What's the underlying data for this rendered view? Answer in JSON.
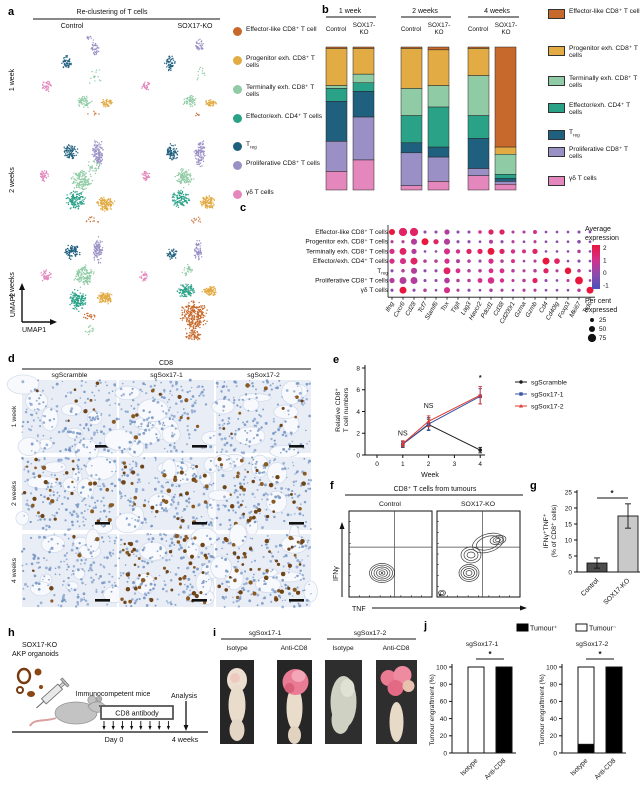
{
  "panel_letters": {
    "a": "a",
    "b": "b",
    "c": "c",
    "d": "d",
    "e": "e",
    "f": "f",
    "g": "g",
    "h": "h",
    "i": "i",
    "j": "j"
  },
  "cell_types": [
    {
      "name": "Effector-like CD8⁺ T cell",
      "color": "#c7692c"
    },
    {
      "name": "Progenitor exh. CD8⁺ T cells",
      "color": "#e2ab44"
    },
    {
      "name": "Terminally exh. CD8⁺ T cells",
      "color": "#8fcba4"
    },
    {
      "name": "Effector/exh. CD4⁺ T cells",
      "color": "#2aa287"
    },
    {
      "name": "T_{reg}",
      "color": "#20607f"
    },
    {
      "name": "Proliferative CD8⁺ T cells",
      "color": "#9b90c6"
    },
    {
      "name": "γδ T cells",
      "color": "#e387bd"
    }
  ],
  "panel_a": {
    "title": "Re-clustering of T cells",
    "cols": [
      "Control",
      "SOX17-KO"
    ],
    "rows": [
      "1 week",
      "2 weeks",
      "4 weeks"
    ],
    "x_axis": "UMAP1",
    "y_axis": "UMAP2"
  },
  "panel_b": {
    "group_titles": [
      "1 week",
      "2 weeks",
      "4 weeks"
    ],
    "col_labels": [
      "Control",
      "SOX17-",
      "KO"
    ]
  },
  "panel_d": {
    "title": "CD8",
    "cols": [
      "sgScramble",
      "sgSox17-1",
      "sgSox17-2"
    ],
    "rows": [
      "1 week",
      "2 weeks",
      "4 weeks"
    ],
    "brown_counts": [
      [
        9,
        11,
        10
      ],
      [
        30,
        32,
        34
      ],
      [
        6,
        50,
        44
      ]
    ]
  },
  "panel_f": {
    "title": "CD8⁺ T cells from tumours",
    "cols": [
      "Control",
      "SOX17-KO"
    ],
    "x_axis": "TNF",
    "y_axis": "IFNγ"
  },
  "panel_h": {
    "line1": "SOX17-KO",
    "line2": "AKP organoids",
    "mice": "Immunocompetent mice",
    "box": "CD8 antibody",
    "analysis": "Analysis",
    "day0": "Day 0",
    "end": "4 weeks"
  },
  "panel_i": {
    "groups": [
      "sgSox17-1",
      "sgSox17-2"
    ],
    "cols": [
      "Isotype",
      "Anti-CD8"
    ]
  },
  "chart_data": [
    {
      "id": "umap",
      "type": "scatter",
      "title": "Re-clustering of T cells",
      "note": "clusters as [colorIndex,cx,cy,rx,ry,n] in page coords",
      "clusters": [
        [
          5,
          95,
          48,
          5,
          9,
          40
        ],
        [
          4,
          67,
          63,
          6,
          8,
          55
        ],
        [
          6,
          47,
          86,
          6,
          6,
          40
        ],
        [
          2,
          84,
          102,
          8,
          7,
          60
        ],
        [
          1,
          107,
          103,
          7,
          5,
          50
        ],
        [
          2,
          96,
          76,
          10,
          12,
          14
        ],
        [
          0,
          92,
          114,
          8,
          3,
          6
        ],
        [
          5,
          88,
          38,
          4,
          3,
          8
        ],
        [
          5,
          199,
          46,
          5,
          9,
          38
        ],
        [
          4,
          170,
          63,
          6,
          8,
          55
        ],
        [
          6,
          146,
          86,
          5,
          6,
          35
        ],
        [
          2,
          190,
          101,
          8,
          7,
          55
        ],
        [
          1,
          210,
          103,
          7,
          5,
          45
        ],
        [
          2,
          200,
          76,
          10,
          12,
          12
        ],
        [
          0,
          196,
          114,
          8,
          3,
          6
        ],
        [
          4,
          70,
          152,
          9,
          9,
          90
        ],
        [
          5,
          98,
          153,
          6,
          16,
          120
        ],
        [
          6,
          44,
          176,
          6,
          7,
          45
        ],
        [
          2,
          82,
          180,
          12,
          12,
          150
        ],
        [
          3,
          76,
          200,
          11,
          11,
          140
        ],
        [
          1,
          106,
          204,
          10,
          8,
          130
        ],
        [
          0,
          92,
          220,
          9,
          4,
          12
        ],
        [
          2,
          95,
          166,
          8,
          8,
          30
        ],
        [
          4,
          172,
          152,
          8,
          9,
          80
        ],
        [
          5,
          200,
          153,
          6,
          16,
          110
        ],
        [
          6,
          146,
          176,
          5,
          6,
          38
        ],
        [
          2,
          184,
          178,
          10,
          10,
          110
        ],
        [
          3,
          180,
          199,
          10,
          10,
          120
        ],
        [
          1,
          208,
          203,
          9,
          8,
          110
        ],
        [
          0,
          196,
          220,
          8,
          4,
          10
        ],
        [
          4,
          72,
          252,
          10,
          9,
          90
        ],
        [
          5,
          98,
          250,
          6,
          15,
          100
        ],
        [
          6,
          46,
          276,
          6,
          7,
          45
        ],
        [
          2,
          84,
          276,
          11,
          12,
          150
        ],
        [
          3,
          78,
          300,
          10,
          12,
          150
        ],
        [
          1,
          105,
          298,
          9,
          7,
          120
        ],
        [
          0,
          88,
          316,
          8,
          5,
          20
        ],
        [
          2,
          90,
          330,
          6,
          5,
          15
        ],
        [
          5,
          198,
          250,
          5,
          12,
          60
        ],
        [
          4,
          172,
          254,
          6,
          7,
          50
        ],
        [
          6,
          144,
          276,
          5,
          6,
          35
        ],
        [
          2,
          187,
          270,
          6,
          6,
          30
        ],
        [
          3,
          186,
          290,
          10,
          9,
          110
        ],
        [
          1,
          210,
          291,
          8,
          6,
          90
        ],
        [
          0,
          194,
          316,
          15,
          17,
          280
        ],
        [
          0,
          194,
          335,
          10,
          6,
          60
        ]
      ]
    },
    {
      "id": "b_stacked",
      "type": "bar",
      "stacked": true,
      "categories": [
        "1 week Control",
        "1 week SOX17-KO",
        "2 weeks Control",
        "2 weeks SOX17-KO",
        "4 weeks Control",
        "4 weeks SOX17-KO"
      ],
      "series_order": "top to bottom: Effector-like, Progenitor, Terminally, Effector/exh CD4, Treg, Proliferative, gd",
      "values_pct": [
        [
          1,
          26,
          2,
          9,
          28,
          21,
          13
        ],
        [
          1,
          18,
          6,
          6,
          18,
          30,
          21
        ],
        [
          1,
          28,
          19,
          19,
          7,
          23,
          3
        ],
        [
          2,
          25,
          15,
          28,
          7,
          17,
          6
        ],
        [
          1,
          19,
          28,
          16,
          21,
          5,
          10
        ],
        [
          70,
          5,
          14,
          3,
          2,
          2,
          4
        ]
      ]
    },
    {
      "id": "c_dotplot",
      "type": "heatmap",
      "genes": [
        "Ifng",
        "Cxcr6",
        "Cd28",
        "Tcf7",
        "Slamf6",
        "Tox",
        "Tigit",
        "Lag3",
        "Havcr2",
        "Pdcd1",
        "Cd38",
        "Cd200r1",
        "Gzma",
        "Gzmb",
        "Cd4",
        "Cd40lg",
        "Foxp3",
        "Mki67",
        "Trdc"
      ],
      "rows": [
        "Effector-like CD8⁺ T cells",
        "Progenitor exh. CD8⁺ T cells",
        "Terminally exh. CD8⁺ T cells",
        "Effector/exh. CD4⁺ T cells",
        "T_{reg}",
        "Proliferative CD8⁺ T cells",
        "γδ T cells"
      ],
      "cells_pct_expr": [
        [
          [
            50,
            2
          ],
          [
            75,
            1.5
          ],
          [
            75,
            1.5
          ],
          [
            15,
            0
          ],
          [
            15,
            0
          ],
          [
            40,
            0.5
          ],
          [
            15,
            0
          ],
          [
            15,
            0
          ],
          [
            20,
            1
          ],
          [
            40,
            1.5
          ],
          [
            40,
            1.5
          ],
          [
            15,
            0.5
          ],
          [
            15,
            0.5
          ],
          [
            25,
            1
          ],
          [
            10,
            0
          ],
          [
            10,
            0
          ],
          [
            10,
            0
          ],
          [
            15,
            0
          ],
          [
            10,
            0
          ]
        ],
        [
          [
            15,
            0.5
          ],
          [
            15,
            0.5
          ],
          [
            50,
            0.5
          ],
          [
            60,
            2
          ],
          [
            40,
            1.5
          ],
          [
            50,
            0.5
          ],
          [
            15,
            0
          ],
          [
            15,
            0
          ],
          [
            10,
            0
          ],
          [
            25,
            0.5
          ],
          [
            15,
            0
          ],
          [
            15,
            0.5
          ],
          [
            10,
            0
          ],
          [
            15,
            0.5
          ],
          [
            10,
            0
          ],
          [
            10,
            0
          ],
          [
            10,
            0
          ],
          [
            20,
            0
          ],
          [
            10,
            0
          ]
        ],
        [
          [
            40,
            1
          ],
          [
            60,
            1.5
          ],
          [
            40,
            0.5
          ],
          [
            10,
            0
          ],
          [
            10,
            0
          ],
          [
            50,
            1
          ],
          [
            30,
            1
          ],
          [
            40,
            1.5
          ],
          [
            40,
            1.5
          ],
          [
            60,
            2
          ],
          [
            40,
            1.5
          ],
          [
            30,
            1
          ],
          [
            25,
            1
          ],
          [
            40,
            1.5
          ],
          [
            10,
            0
          ],
          [
            10,
            0
          ],
          [
            10,
            0
          ],
          [
            20,
            0.5
          ],
          [
            10,
            0
          ]
        ],
        [
          [
            40,
            1
          ],
          [
            50,
            1
          ],
          [
            60,
            1.5
          ],
          [
            20,
            0.5
          ],
          [
            20,
            0.5
          ],
          [
            40,
            1
          ],
          [
            25,
            0.5
          ],
          [
            20,
            0.5
          ],
          [
            15,
            0
          ],
          [
            40,
            1
          ],
          [
            20,
            0.5
          ],
          [
            25,
            1
          ],
          [
            10,
            0
          ],
          [
            15,
            0.5
          ],
          [
            60,
            2
          ],
          [
            45,
            1.5
          ],
          [
            10,
            0
          ],
          [
            15,
            0
          ],
          [
            10,
            0
          ]
        ],
        [
          [
            15,
            0
          ],
          [
            20,
            0.5
          ],
          [
            50,
            0.5
          ],
          [
            15,
            0
          ],
          [
            15,
            0
          ],
          [
            60,
            1.5
          ],
          [
            35,
            1
          ],
          [
            20,
            0.5
          ],
          [
            20,
            0.5
          ],
          [
            35,
            1
          ],
          [
            35,
            1
          ],
          [
            20,
            0.5
          ],
          [
            15,
            0.5
          ],
          [
            20,
            0.5
          ],
          [
            40,
            1.5
          ],
          [
            15,
            0.5
          ],
          [
            55,
            2
          ],
          [
            20,
            0.5
          ],
          [
            10,
            0
          ]
        ],
        [
          [
            40,
            0.5
          ],
          [
            60,
            0.5
          ],
          [
            60,
            0.5
          ],
          [
            15,
            0
          ],
          [
            15,
            0
          ],
          [
            45,
            0.5
          ],
          [
            20,
            0.5
          ],
          [
            20,
            0.5
          ],
          [
            35,
            1
          ],
          [
            55,
            1
          ],
          [
            30,
            1
          ],
          [
            15,
            0.5
          ],
          [
            20,
            0.5
          ],
          [
            40,
            1.5
          ],
          [
            15,
            0
          ],
          [
            10,
            0
          ],
          [
            15,
            0.5
          ],
          [
            70,
            2
          ],
          [
            10,
            0
          ]
        ],
        [
          [
            15,
            0
          ],
          [
            60,
            2
          ],
          [
            15,
            0
          ],
          [
            20,
            0.5
          ],
          [
            10,
            0
          ],
          [
            50,
            1
          ],
          [
            15,
            0.5
          ],
          [
            15,
            0
          ],
          [
            10,
            0
          ],
          [
            20,
            0.5
          ],
          [
            15,
            0.5
          ],
          [
            10,
            0
          ],
          [
            15,
            0.5
          ],
          [
            15,
            0.5
          ],
          [
            10,
            0
          ],
          [
            10,
            0
          ],
          [
            10,
            0
          ],
          [
            20,
            0.5
          ],
          [
            60,
            2
          ]
        ]
      ],
      "color_legend": {
        "title": "Average expression",
        "ticks": [
          2,
          1,
          0,
          -1
        ]
      },
      "size_legend": {
        "title": "Per cent expressed",
        "ticks": [
          25,
          50,
          75
        ]
      }
    },
    {
      "id": "e_line",
      "type": "line",
      "x": [
        1,
        2,
        4
      ],
      "series": [
        {
          "name": "sgScramble",
          "color": "#1a1a1a",
          "marker": "circle",
          "values": [
            1.0,
            2.8,
            0.45
          ],
          "err": [
            0.3,
            0.5,
            0.25
          ]
        },
        {
          "name": "sgSox17-1",
          "color": "#3a53a4",
          "marker": "square",
          "values": [
            1.0,
            2.85,
            5.4
          ],
          "err": [
            0.25,
            0.6,
            0.7
          ]
        },
        {
          "name": "sgSox17-2",
          "color": "#e0372e",
          "marker": "triangle",
          "values": [
            1.05,
            3.1,
            5.5
          ],
          "err": [
            0.25,
            0.5,
            0.8
          ]
        }
      ],
      "annotations": [
        {
          "x": 1,
          "y": 1.8,
          "text": "NS"
        },
        {
          "x": 2,
          "y": 4.3,
          "text": "NS"
        },
        {
          "x": 4,
          "y": 6.9,
          "text": "*"
        }
      ],
      "xlabel": "Week",
      "ylabel": [
        "Relative CD8⁺",
        "T cell numbers"
      ],
      "xticks": [
        0,
        1,
        2,
        3,
        4
      ],
      "yticks": [
        0,
        2,
        4,
        6,
        8
      ],
      "ylim": [
        0,
        8
      ]
    },
    {
      "id": "g_bar",
      "type": "bar",
      "categories": [
        "Control",
        "SOX17-KO"
      ],
      "values": [
        2.8,
        17.5
      ],
      "errors": [
        1.6,
        3.8
      ],
      "bar_colors": [
        "#4d4d4d",
        "#c9c9c9"
      ],
      "ylabel": [
        "IFNγ⁺TNF⁺",
        "(% of CD8⁺ cells)"
      ],
      "yticks": [
        0,
        5,
        10,
        15,
        20,
        25
      ],
      "ylim": [
        0,
        25
      ],
      "sig": "*"
    },
    {
      "id": "j_bars",
      "type": "bar",
      "stacked": true,
      "legend": [
        "Tumour⁺",
        "Tumour⁻"
      ],
      "ylabel": "Tumour engraftment (%)",
      "yticks": [
        0,
        20,
        40,
        60,
        80,
        100
      ],
      "ylim": [
        0,
        100
      ],
      "charts": [
        {
          "title": "sgSox17-1",
          "categories": [
            "Isotype",
            "Anti-CD8"
          ],
          "tumour_pos": [
            0,
            100
          ],
          "tumour_neg": [
            100,
            0
          ],
          "sig": "*"
        },
        {
          "title": "sgSox17-2",
          "categories": [
            "Isotype",
            "Anti-CD8"
          ],
          "tumour_pos": [
            10,
            100
          ],
          "tumour_neg": [
            90,
            0
          ],
          "sig": "*"
        }
      ]
    }
  ]
}
